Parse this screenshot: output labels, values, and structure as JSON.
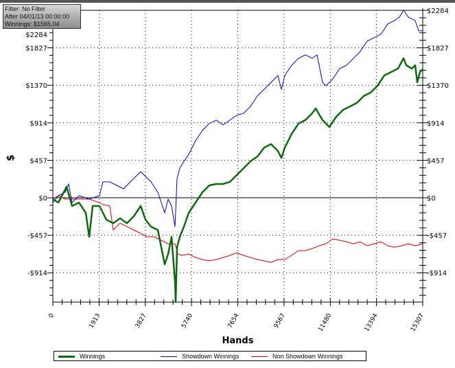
{
  "info_box": {
    "filter": "Filter: No Filter",
    "after": "After 04/01/13 00:00:00",
    "winnings": "Winnings: $1565.04"
  },
  "chart_data": {
    "type": "line",
    "title": "",
    "xlabel": "Hands",
    "ylabel": "$",
    "xlim": [
      0,
      15307
    ],
    "ylim": [
      -1272,
      2300
    ],
    "x_ticks": [
      0,
      1913,
      3827,
      5740,
      7654,
      9567,
      11480,
      13394,
      15307
    ],
    "x_tick_labels": [
      "0",
      "1913",
      "3827",
      "5740",
      "7654",
      "9567",
      "11480",
      "13394",
      "15307"
    ],
    "y_ticks": [
      2284,
      1827,
      1370,
      914,
      457,
      0,
      -457,
      -914
    ],
    "y_tick_labels": [
      "$2284",
      "$1827",
      "$1370",
      "$914",
      "$457",
      "$0",
      "-$457",
      "-$914"
    ],
    "y_axis_both_sides": true,
    "grid": "dotted at major ticks",
    "zero_line": true,
    "legend_placement": "bottom",
    "series": [
      {
        "name": "Winnings",
        "color": "#0b6b0b",
        "width": 2.5,
        "points": [
          [
            0,
            -17
          ],
          [
            227,
            -59
          ],
          [
            568,
            134
          ],
          [
            795,
            -100
          ],
          [
            1079,
            -59
          ],
          [
            1363,
            -184
          ],
          [
            1505,
            -477
          ],
          [
            1647,
            -100
          ],
          [
            1931,
            -100
          ],
          [
            2215,
            -268
          ],
          [
            2499,
            -310
          ],
          [
            2783,
            -251
          ],
          [
            3067,
            -310
          ],
          [
            3351,
            -226
          ],
          [
            3635,
            -100
          ],
          [
            3834,
            -268
          ],
          [
            4061,
            -352
          ],
          [
            4345,
            -393
          ],
          [
            4487,
            -603
          ],
          [
            4629,
            -812
          ],
          [
            4771,
            -686
          ],
          [
            4913,
            -477
          ],
          [
            5055,
            -1021
          ],
          [
            5084,
            -1272
          ],
          [
            5140,
            -603
          ],
          [
            5254,
            -477
          ],
          [
            5424,
            -352
          ],
          [
            5623,
            -184
          ],
          [
            5907,
            -59
          ],
          [
            6191,
            67
          ],
          [
            6475,
            151
          ],
          [
            6759,
            167
          ],
          [
            7043,
            167
          ],
          [
            7327,
            193
          ],
          [
            7611,
            276
          ],
          [
            7895,
            360
          ],
          [
            8179,
            444
          ],
          [
            8463,
            502
          ],
          [
            8747,
            611
          ],
          [
            9031,
            653
          ],
          [
            9315,
            569
          ],
          [
            9457,
            485
          ],
          [
            9599,
            611
          ],
          [
            9883,
            778
          ],
          [
            10167,
            904
          ],
          [
            10451,
            946
          ],
          [
            10735,
            1030
          ],
          [
            10877,
            1088
          ],
          [
            11161,
            946
          ],
          [
            11445,
            862
          ],
          [
            11729,
            988
          ],
          [
            12013,
            1071
          ],
          [
            12297,
            1113
          ],
          [
            12581,
            1155
          ],
          [
            12865,
            1239
          ],
          [
            13149,
            1281
          ],
          [
            13433,
            1364
          ],
          [
            13717,
            1490
          ],
          [
            14001,
            1532
          ],
          [
            14285,
            1574
          ],
          [
            14512,
            1699
          ],
          [
            14626,
            1615
          ],
          [
            14853,
            1574
          ],
          [
            14995,
            1615
          ],
          [
            15080,
            1406
          ],
          [
            15194,
            1532
          ],
          [
            15307,
            1565
          ]
        ]
      },
      {
        "name": "Showdown Winnings",
        "color": "#0000cc",
        "width": 1,
        "points": [
          [
            0,
            -59
          ],
          [
            227,
            25
          ],
          [
            511,
            67
          ],
          [
            653,
            167
          ],
          [
            795,
            -59
          ],
          [
            1079,
            25
          ],
          [
            1505,
            -17
          ],
          [
            1931,
            25
          ],
          [
            2073,
            193
          ],
          [
            2357,
            193
          ],
          [
            2641,
            151
          ],
          [
            2925,
            109
          ],
          [
            3209,
            193
          ],
          [
            3493,
            276
          ],
          [
            3635,
            318
          ],
          [
            3777,
            276
          ],
          [
            4061,
            193
          ],
          [
            4345,
            67
          ],
          [
            4487,
            -59
          ],
          [
            4629,
            -184
          ],
          [
            4771,
            -17
          ],
          [
            4913,
            -100
          ],
          [
            5055,
            -352
          ],
          [
            5140,
            234
          ],
          [
            5254,
            360
          ],
          [
            5424,
            444
          ],
          [
            5623,
            527
          ],
          [
            5907,
            695
          ],
          [
            6191,
            820
          ],
          [
            6475,
            904
          ],
          [
            6759,
            946
          ],
          [
            7043,
            887
          ],
          [
            7327,
            946
          ],
          [
            7611,
            1004
          ],
          [
            7895,
            1030
          ],
          [
            8179,
            1113
          ],
          [
            8463,
            1239
          ],
          [
            8747,
            1322
          ],
          [
            9031,
            1406
          ],
          [
            9315,
            1490
          ],
          [
            9457,
            1322
          ],
          [
            9599,
            1490
          ],
          [
            9883,
            1615
          ],
          [
            10167,
            1699
          ],
          [
            10451,
            1741
          ],
          [
            10735,
            1699
          ],
          [
            10934,
            1741
          ],
          [
            11161,
            1406
          ],
          [
            11303,
            1364
          ],
          [
            11587,
            1448
          ],
          [
            11871,
            1574
          ],
          [
            12155,
            1615
          ],
          [
            12439,
            1699
          ],
          [
            12723,
            1783
          ],
          [
            13007,
            1908
          ],
          [
            13291,
            1950
          ],
          [
            13575,
            1992
          ],
          [
            13859,
            2118
          ],
          [
            14143,
            2159
          ],
          [
            14342,
            2201
          ],
          [
            14512,
            2285
          ],
          [
            14711,
            2201
          ],
          [
            14995,
            2159
          ],
          [
            15137,
            2034
          ],
          [
            15307,
            2034
          ]
        ]
      },
      {
        "name": "Non Showdown Winnings",
        "color": "#dd0000",
        "width": 1,
        "points": [
          [
            0,
            -17
          ],
          [
            227,
            25
          ],
          [
            511,
            -17
          ],
          [
            795,
            -17
          ],
          [
            1079,
            -17
          ],
          [
            1505,
            -17
          ],
          [
            1931,
            -59
          ],
          [
            2073,
            -84
          ],
          [
            2357,
            -100
          ],
          [
            2499,
            -393
          ],
          [
            2783,
            -310
          ],
          [
            3067,
            -352
          ],
          [
            3351,
            -393
          ],
          [
            3635,
            -435
          ],
          [
            3919,
            -477
          ],
          [
            4203,
            -477
          ],
          [
            4487,
            -519
          ],
          [
            4771,
            -561
          ],
          [
            5055,
            -561
          ],
          [
            5169,
            -686
          ],
          [
            5339,
            -703
          ],
          [
            5623,
            -686
          ],
          [
            5907,
            -728
          ],
          [
            6191,
            -753
          ],
          [
            6475,
            -770
          ],
          [
            6759,
            -753
          ],
          [
            7043,
            -728
          ],
          [
            7327,
            -703
          ],
          [
            7611,
            -670
          ],
          [
            7895,
            -703
          ],
          [
            8179,
            -728
          ],
          [
            8463,
            -753
          ],
          [
            8747,
            -770
          ],
          [
            9031,
            -787
          ],
          [
            9315,
            -753
          ],
          [
            9599,
            -753
          ],
          [
            9883,
            -703
          ],
          [
            10167,
            -644
          ],
          [
            10451,
            -644
          ],
          [
            10735,
            -619
          ],
          [
            11019,
            -586
          ],
          [
            11303,
            -561
          ],
          [
            11587,
            -502
          ],
          [
            11871,
            -519
          ],
          [
            12155,
            -536
          ],
          [
            12439,
            -561
          ],
          [
            12723,
            -536
          ],
          [
            13007,
            -586
          ],
          [
            13291,
            -561
          ],
          [
            13575,
            -536
          ],
          [
            13859,
            -586
          ],
          [
            14143,
            -603
          ],
          [
            14427,
            -586
          ],
          [
            14711,
            -561
          ],
          [
            14995,
            -586
          ],
          [
            15307,
            -561
          ]
        ]
      }
    ]
  }
}
